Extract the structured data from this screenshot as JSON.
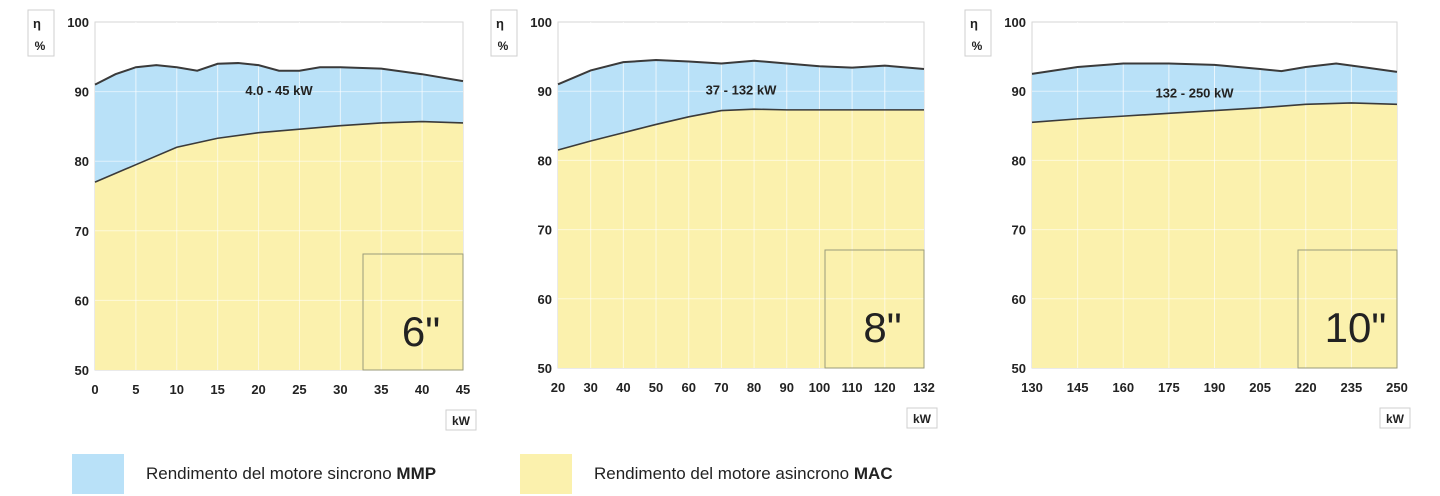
{
  "colors": {
    "mmp_fill": "#b9e1f8",
    "mac_fill": "#fbf1ad",
    "curve": "#3a3a3a",
    "grid": "#d6d6d6",
    "axis_text": "#222222"
  },
  "chart_data": [
    {
      "type": "area",
      "y_label_lines": [
        "η",
        "%"
      ],
      "xlabel": "kW",
      "ylim": [
        50,
        100
      ],
      "yticks": [
        50,
        60,
        70,
        80,
        90,
        100
      ],
      "xlim": [
        0,
        45
      ],
      "xticks": [
        0,
        5,
        10,
        15,
        20,
        25,
        30,
        35,
        40,
        45
      ],
      "grid": true,
      "range_label": "4.0 - 45 kW",
      "size_label": "6\"",
      "series": [
        {
          "name": "Rendimento del motore sincrono MMP",
          "x": [
            0,
            2.5,
            5,
            7.5,
            10,
            12.5,
            15,
            17.5,
            20,
            22.5,
            25,
            27.5,
            30,
            35,
            40,
            45
          ],
          "values": [
            91,
            92.5,
            93.5,
            93.8,
            93.5,
            93,
            94,
            94.1,
            93.8,
            93,
            93,
            93.5,
            93.5,
            93.3,
            92.5,
            91.5
          ]
        },
        {
          "name": "Rendimento del motore asincrono MAC",
          "x": [
            0,
            5,
            10,
            15,
            20,
            25,
            30,
            35,
            40,
            45
          ],
          "values": [
            77,
            79.5,
            82,
            83.3,
            84.1,
            84.6,
            85.1,
            85.5,
            85.7,
            85.5
          ]
        }
      ]
    },
    {
      "type": "area",
      "y_label_lines": [
        "η",
        "%"
      ],
      "xlabel": "kW",
      "ylim": [
        50,
        100
      ],
      "yticks": [
        50,
        60,
        70,
        80,
        90,
        100
      ],
      "xlim": [
        20,
        132
      ],
      "xticks": [
        20,
        30,
        40,
        50,
        60,
        70,
        80,
        90,
        100,
        110,
        120,
        132
      ],
      "grid": true,
      "range_label": "37 - 132 kW",
      "size_label": "8\"",
      "series": [
        {
          "name": "Rendimento del motore sincrono MMP",
          "x": [
            20,
            30,
            40,
            50,
            60,
            70,
            80,
            90,
            100,
            110,
            120,
            132
          ],
          "values": [
            91,
            93,
            94.2,
            94.5,
            94.3,
            94,
            94.4,
            94,
            93.6,
            93.4,
            93.7,
            93.2
          ]
        },
        {
          "name": "Rendimento del motore asincrono MAC",
          "x": [
            20,
            30,
            40,
            50,
            60,
            70,
            80,
            90,
            100,
            110,
            120,
            132
          ],
          "values": [
            81.5,
            82.8,
            84,
            85.2,
            86.3,
            87.2,
            87.4,
            87.3,
            87.3,
            87.3,
            87.3,
            87.3
          ]
        }
      ]
    },
    {
      "type": "area",
      "y_label_lines": [
        "η",
        "%"
      ],
      "xlabel": "kW",
      "ylim": [
        50,
        100
      ],
      "yticks": [
        50,
        60,
        70,
        80,
        90,
        100
      ],
      "xlim": [
        130,
        250
      ],
      "xticks": [
        130,
        145,
        160,
        175,
        190,
        205,
        220,
        235,
        250
      ],
      "grid": true,
      "range_label": "132 - 250 kW",
      "size_label": "10\"",
      "series": [
        {
          "name": "Rendimento del motore sincrono MMP",
          "x": [
            130,
            145,
            160,
            175,
            190,
            205,
            212,
            220,
            230,
            240,
            250
          ],
          "values": [
            92.5,
            93.5,
            94,
            94,
            93.8,
            93.2,
            92.9,
            93.5,
            94,
            93.4,
            92.8
          ]
        },
        {
          "name": "Rendimento del motore asincrono MAC",
          "x": [
            130,
            145,
            160,
            175,
            190,
            205,
            220,
            235,
            250
          ],
          "values": [
            85.5,
            86,
            86.4,
            86.8,
            87.2,
            87.6,
            88.1,
            88.3,
            88.1
          ]
        }
      ]
    }
  ],
  "legend": [
    {
      "text": "Rendimento del motore sincrono ",
      "bold": "MMP",
      "color": "#b9e1f8"
    },
    {
      "text": "Rendimento del motore asincrono ",
      "bold": "MAC",
      "color": "#fbf1ad"
    }
  ]
}
